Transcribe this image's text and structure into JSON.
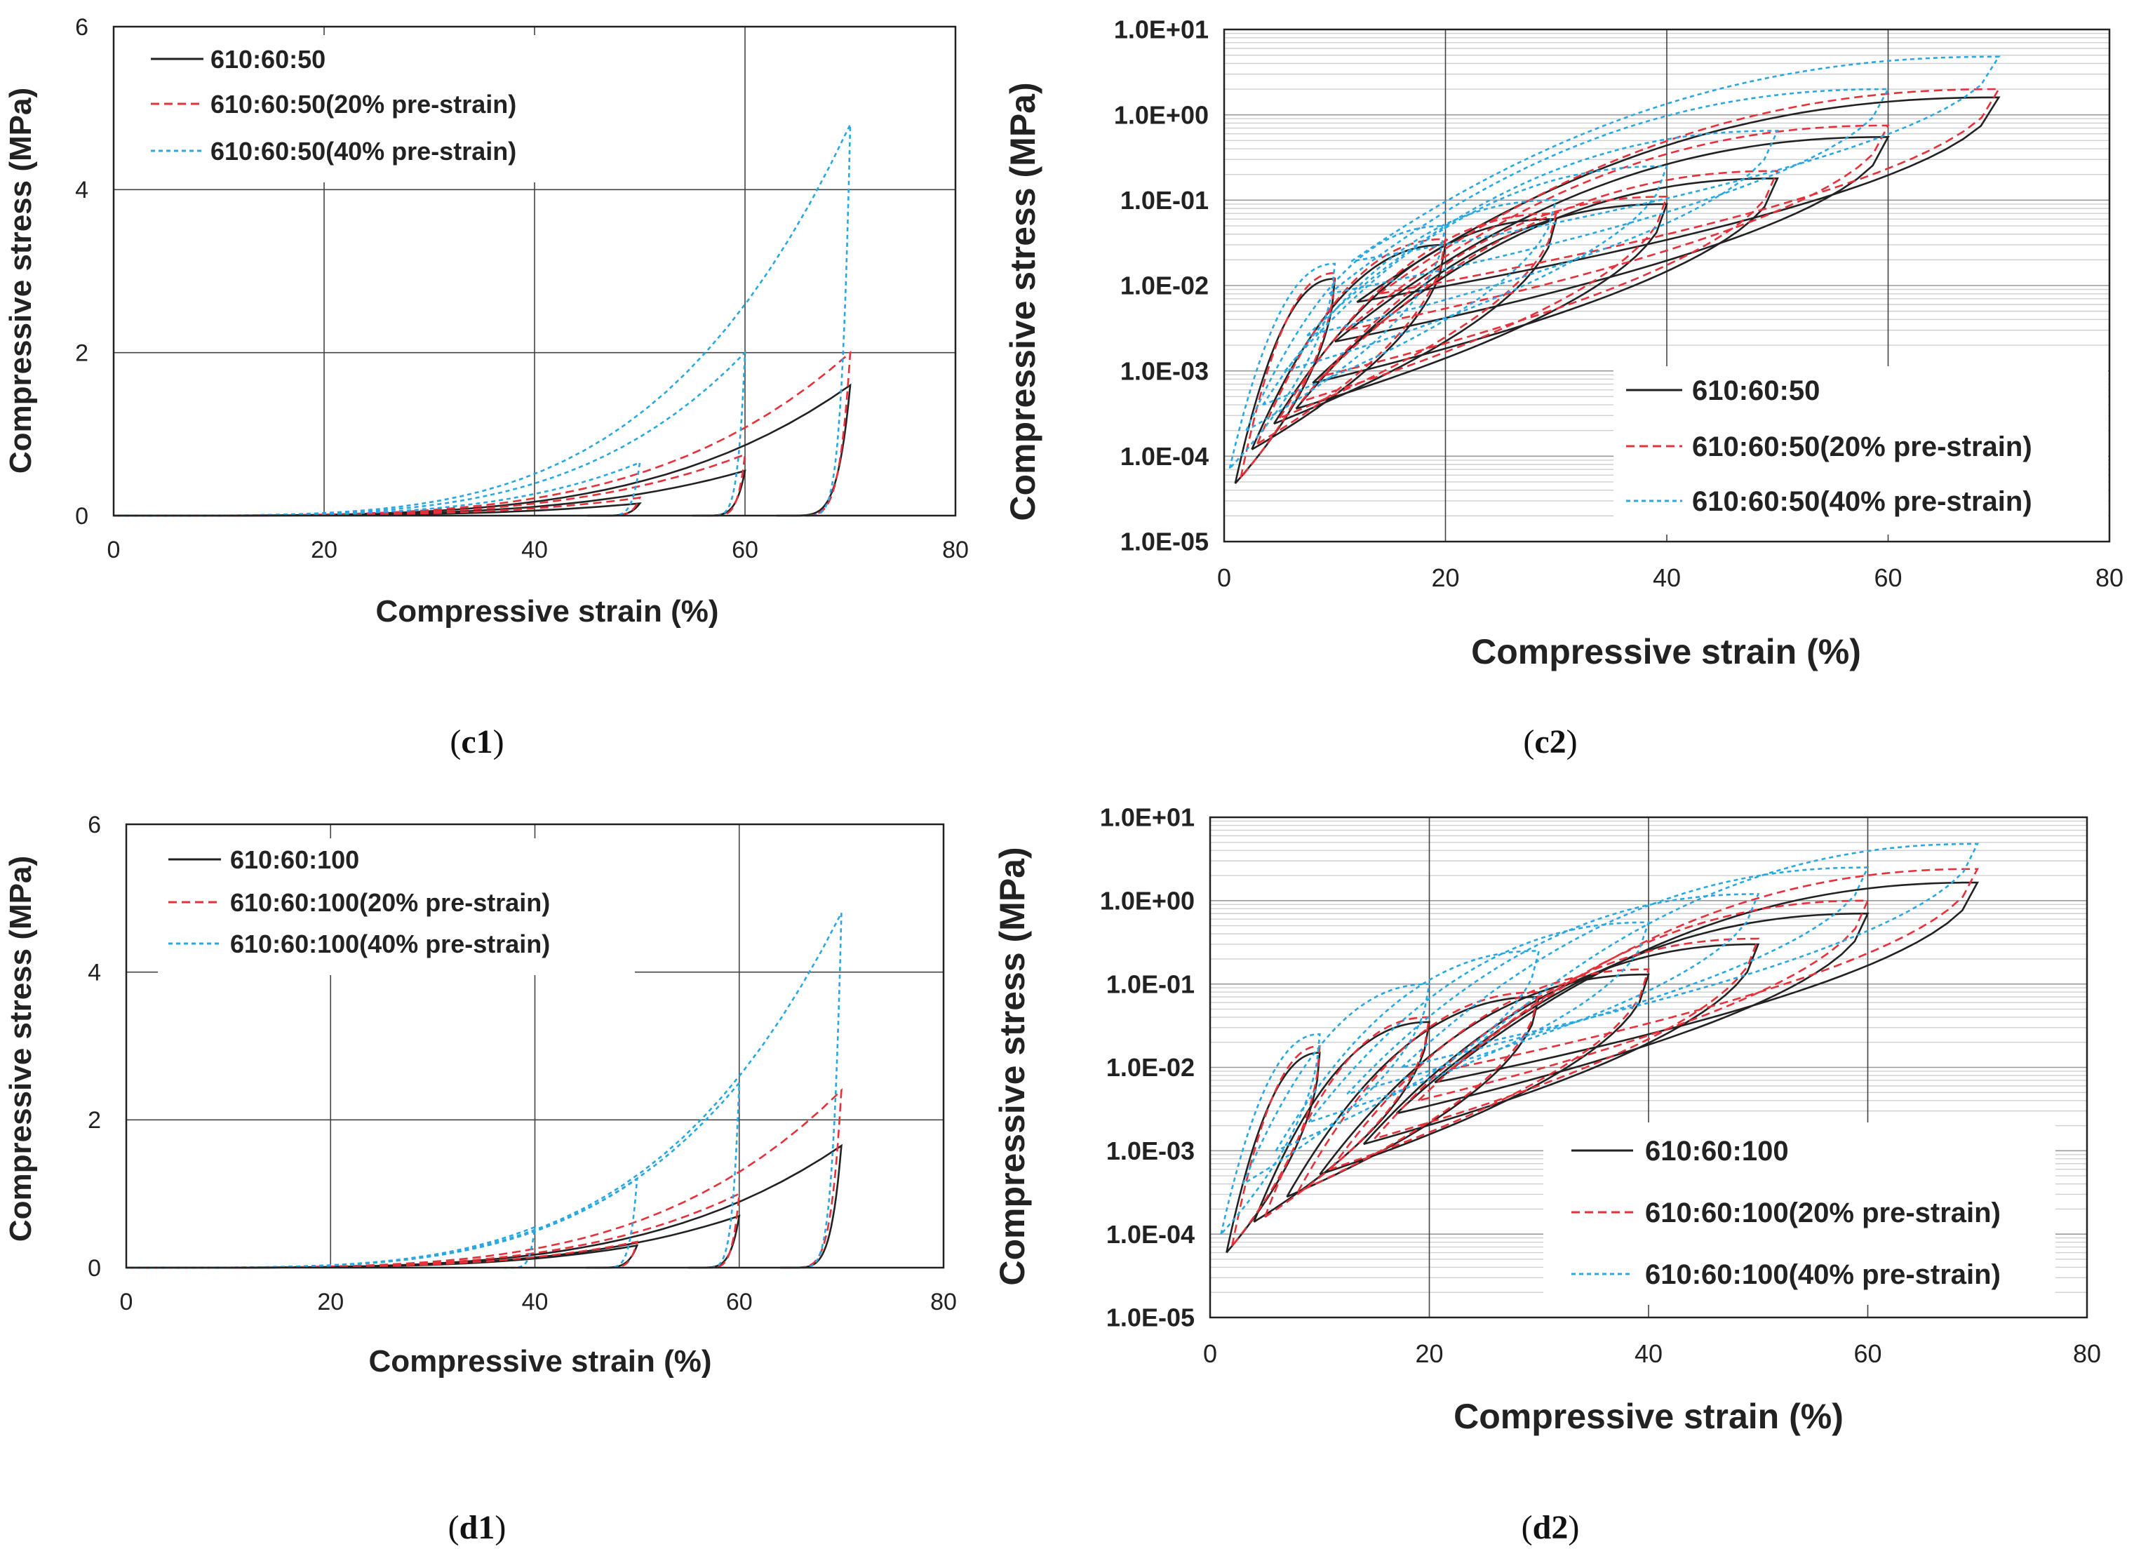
{
  "colors": {
    "series0": "#222222",
    "series1": "#e8303a",
    "series2": "#29a8e0"
  },
  "chart_data": [
    {
      "type": "line",
      "caption_letter": "c1",
      "scale": "linear",
      "xlabel": "Compressive strain (%)",
      "ylabel": "Compressive stress  (MPa)",
      "xlim": [
        0,
        80
      ],
      "ylim": [
        0,
        6
      ],
      "xticks": [
        "0",
        "20",
        "40",
        "60",
        "80"
      ],
      "yticks": [
        "0",
        "2",
        "4",
        "6"
      ],
      "legend_position": "top-left",
      "series": [
        {
          "name": "610:60:50",
          "loops": [
            {
              "from": 0,
              "peak": 50,
              "top": 0.15,
              "end": 45
            },
            {
              "from": 0,
              "peak": 60,
              "top": 0.55,
              "end": 55
            },
            {
              "from": 0,
              "peak": 70,
              "top": 1.6,
              "end": 63
            }
          ]
        },
        {
          "name": "610:60:50(20% pre-strain)",
          "loops": [
            {
              "from": 0,
              "peak": 50,
              "top": 0.22,
              "end": 46
            },
            {
              "from": 0,
              "peak": 60,
              "top": 0.75,
              "end": 56
            },
            {
              "from": 0,
              "peak": 70,
              "top": 2.0,
              "end": 64
            }
          ]
        },
        {
          "name": "610:60:50(40% pre-strain)",
          "loops": [
            {
              "from": 0,
              "peak": 50,
              "top": 0.65,
              "end": 46
            },
            {
              "from": 0,
              "peak": 60,
              "top": 2.0,
              "end": 56
            },
            {
              "from": 0,
              "peak": 70,
              "top": 4.8,
              "end": 65
            }
          ]
        }
      ]
    },
    {
      "type": "line",
      "caption_letter": "c2",
      "scale": "log",
      "xlabel": "Compressive strain (%)",
      "ylabel": "Compressive stress  (MPa)",
      "xlim": [
        0,
        80
      ],
      "ylim": [
        1e-05,
        10
      ],
      "xticks": [
        "0",
        "20",
        "40",
        "60",
        "80"
      ],
      "yticks": [
        "1.0E-05",
        "1.0E-04",
        "1.0E-03",
        "1.0E-02",
        "1.0E-01",
        "1.0E+00",
        "1.0E+01"
      ],
      "legend_position": "bottom-right",
      "series": [
        {
          "name": "610:60:50",
          "loops": [
            {
              "from": 1,
              "peak": 10,
              "top": 0.012,
              "end": 1
            },
            {
              "from": 2.5,
              "peak": 20,
              "top": 0.03,
              "end": 2.5
            },
            {
              "from": 4.5,
              "peak": 30,
              "top": 0.06,
              "end": 4.5
            },
            {
              "from": 6.5,
              "peak": 40,
              "top": 0.09,
              "end": 6.5
            },
            {
              "from": 8,
              "peak": 50,
              "top": 0.18,
              "end": 8
            },
            {
              "from": 10,
              "peak": 60,
              "top": 0.55,
              "end": 10
            },
            {
              "from": 12,
              "peak": 70,
              "top": 1.6,
              "end": 12
            }
          ]
        },
        {
          "name": "610:60:50(20% pre-strain)",
          "loops": [
            {
              "from": 1.5,
              "peak": 10,
              "top": 0.014,
              "end": 1.5
            },
            {
              "from": 3,
              "peak": 20,
              "top": 0.035,
              "end": 3
            },
            {
              "from": 5,
              "peak": 30,
              "top": 0.07,
              "end": 5
            },
            {
              "from": 7,
              "peak": 40,
              "top": 0.11,
              "end": 7
            },
            {
              "from": 9,
              "peak": 50,
              "top": 0.22,
              "end": 9
            },
            {
              "from": 11,
              "peak": 60,
              "top": 0.75,
              "end": 11
            },
            {
              "from": 14,
              "peak": 70,
              "top": 2.0,
              "end": 14
            }
          ]
        },
        {
          "name": "610:60:50(40% pre-strain)",
          "loops": [
            {
              "from": 0.5,
              "peak": 10,
              "top": 0.018,
              "end": 0.5
            },
            {
              "from": 2,
              "peak": 20,
              "top": 0.05,
              "end": 2
            },
            {
              "from": 3.5,
              "peak": 30,
              "top": 0.1,
              "end": 3.5
            },
            {
              "from": 5.5,
              "peak": 40,
              "top": 0.25,
              "end": 5.5
            },
            {
              "from": 7.5,
              "peak": 50,
              "top": 0.65,
              "end": 7.5
            },
            {
              "from": 9.5,
              "peak": 60,
              "top": 2.0,
              "end": 9.5
            },
            {
              "from": 11.5,
              "peak": 70,
              "top": 4.8,
              "end": 11.5
            }
          ]
        }
      ]
    },
    {
      "type": "line",
      "caption_letter": "d1",
      "scale": "linear",
      "xlabel": "Compressive strain (%)",
      "ylabel": "Compressive stress  (MPa)",
      "xlim": [
        0,
        80
      ],
      "ylim": [
        0,
        6
      ],
      "xticks": [
        "0",
        "20",
        "40",
        "60",
        "80"
      ],
      "yticks": [
        "0",
        "2",
        "4",
        "6"
      ],
      "legend_position": "top-left",
      "series": [
        {
          "name": "610:60:100",
          "loops": [
            {
              "from": 0,
              "peak": 50,
              "top": 0.3,
              "end": 45
            },
            {
              "from": 0,
              "peak": 60,
              "top": 0.7,
              "end": 55
            },
            {
              "from": 0,
              "peak": 70,
              "top": 1.65,
              "end": 64
            }
          ]
        },
        {
          "name": "610:60:100(20% pre-strain)",
          "loops": [
            {
              "from": 0,
              "peak": 50,
              "top": 0.35,
              "end": 46
            },
            {
              "from": 0,
              "peak": 60,
              "top": 1.0,
              "end": 56
            },
            {
              "from": 0,
              "peak": 70,
              "top": 2.4,
              "end": 64
            }
          ]
        },
        {
          "name": "610:60:100(40% pre-strain)",
          "loops": [
            {
              "from": 0,
              "peak": 40,
              "top": 0.55,
              "end": 37
            },
            {
              "from": 0,
              "peak": 50,
              "top": 1.2,
              "end": 46
            },
            {
              "from": 0,
              "peak": 60,
              "top": 2.5,
              "end": 56
            },
            {
              "from": 0,
              "peak": 70,
              "top": 4.8,
              "end": 65
            }
          ]
        }
      ]
    },
    {
      "type": "line",
      "caption_letter": "d2",
      "scale": "log",
      "xlabel": "Compressive strain (%)",
      "ylabel": "Compressive stress  (MPa)",
      "xlim": [
        0,
        80
      ],
      "ylim": [
        1e-05,
        10
      ],
      "xticks": [
        "0",
        "20",
        "40",
        "60",
        "80"
      ],
      "yticks": [
        "1.0E-05",
        "1.0E-04",
        "1.0E-03",
        "1.0E-02",
        "1.0E-01",
        "1.0E+00",
        "1.0E+01"
      ],
      "legend_position": "bottom-right",
      "series": [
        {
          "name": "610:60:100",
          "loops": [
            {
              "from": 1.5,
              "peak": 10,
              "top": 0.015,
              "end": 1.5
            },
            {
              "from": 4,
              "peak": 20,
              "top": 0.035,
              "end": 4
            },
            {
              "from": 7,
              "peak": 30,
              "top": 0.07,
              "end": 7
            },
            {
              "from": 10,
              "peak": 40,
              "top": 0.13,
              "end": 10
            },
            {
              "from": 14,
              "peak": 50,
              "top": 0.3,
              "end": 14
            },
            {
              "from": 17,
              "peak": 60,
              "top": 0.7,
              "end": 17
            },
            {
              "from": 20.5,
              "peak": 70,
              "top": 1.65,
              "end": 20.5
            }
          ]
        },
        {
          "name": "610:60:100(20% pre-strain)",
          "loops": [
            {
              "from": 2,
              "peak": 10,
              "top": 0.018,
              "end": 2
            },
            {
              "from": 5,
              "peak": 20,
              "top": 0.04,
              "end": 5
            },
            {
              "from": 8,
              "peak": 30,
              "top": 0.08,
              "end": 8
            },
            {
              "from": 11,
              "peak": 40,
              "top": 0.15,
              "end": 11
            },
            {
              "from": 15,
              "peak": 50,
              "top": 0.35,
              "end": 15
            },
            {
              "from": 19,
              "peak": 60,
              "top": 1.0,
              "end": 19
            },
            {
              "from": 22,
              "peak": 70,
              "top": 2.4,
              "end": 22
            }
          ]
        },
        {
          "name": "610:60:100(40% pre-strain)",
          "loops": [
            {
              "from": 1,
              "peak": 10,
              "top": 0.025,
              "end": 1
            },
            {
              "from": 3,
              "peak": 20,
              "top": 0.1,
              "end": 3
            },
            {
              "from": 6,
              "peak": 30,
              "top": 0.25,
              "end": 6
            },
            {
              "from": 9,
              "peak": 40,
              "top": 0.55,
              "end": 9
            },
            {
              "from": 12.5,
              "peak": 50,
              "top": 1.2,
              "end": 12.5
            },
            {
              "from": 17.5,
              "peak": 60,
              "top": 2.5,
              "end": 17.5
            },
            {
              "from": 24.5,
              "peak": 70,
              "top": 4.8,
              "end": 24.5
            }
          ]
        }
      ]
    }
  ]
}
